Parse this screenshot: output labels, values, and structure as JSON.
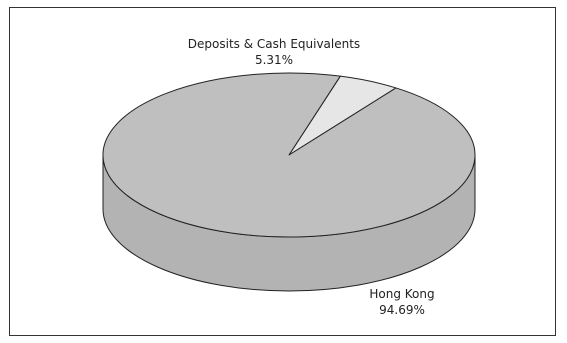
{
  "chart_data": {
    "type": "pie",
    "style": "3d",
    "slices": [
      {
        "label": "Deposits & Cash Equivalents",
        "value": 5.31,
        "value_label": "5.31%",
        "color": "#e6e6e6"
      },
      {
        "label": "Hong Kong",
        "value": 94.69,
        "value_label": "94.69%",
        "color": "#bfbfbf"
      }
    ],
    "side_color": "#b3b3b3",
    "title": "",
    "legend": "none"
  }
}
